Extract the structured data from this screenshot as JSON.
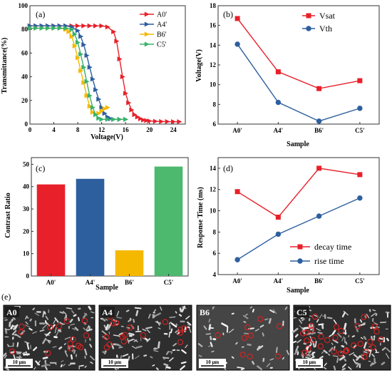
{
  "chart_data": [
    {
      "panel": "(a)",
      "type": "line",
      "xlabel": "Voltage(V)",
      "ylabel": "Transmittance(%)",
      "xlim": [
        0,
        26
      ],
      "ylim": [
        0,
        100
      ],
      "xticks": [
        0,
        4,
        8,
        12,
        16,
        20,
        24
      ],
      "yticks": [
        0,
        20,
        40,
        60,
        80,
        100
      ],
      "legend_position": "top-right",
      "series": [
        {
          "name": "A0'",
          "color": "#e8202a",
          "marker": "triangle-right",
          "x": [
            0,
            1,
            2,
            3,
            4,
            5,
            6,
            7,
            8,
            9,
            10,
            11,
            12,
            13,
            14,
            14.5,
            15,
            15.5,
            16,
            16.5,
            17,
            17.5,
            18,
            18.5,
            19,
            19.5,
            20,
            21,
            22,
            23,
            24,
            25
          ],
          "y": [
            83,
            83,
            83,
            83,
            83,
            83,
            83,
            83,
            83,
            83,
            83,
            83,
            83,
            82,
            78,
            70,
            55,
            40,
            26,
            18,
            12,
            8,
            6,
            4.5,
            3.5,
            3,
            2.6,
            2.3,
            2.2,
            2.1,
            2,
            2
          ]
        },
        {
          "name": "A4'",
          "color": "#2d5f9e",
          "marker": "triangle-right",
          "x": [
            0,
            1,
            2,
            3,
            4,
            5,
            6,
            7,
            8,
            8.5,
            9,
            9.5,
            10,
            10.5,
            11,
            11.5,
            12,
            12.5,
            13,
            13.5,
            14,
            15,
            16
          ],
          "y": [
            83,
            83,
            83,
            83,
            83,
            83,
            83,
            82,
            79,
            74,
            67,
            58,
            48,
            38,
            29,
            21,
            14,
            9,
            6,
            4.5,
            4,
            4,
            4
          ]
        },
        {
          "name": "B6'",
          "color": "#f5b800",
          "marker": "triangle-right",
          "x": [
            0,
            1,
            2,
            3,
            4,
            5,
            6,
            6.5,
            7,
            7.5,
            8,
            8.5,
            9,
            9.5,
            10,
            10.5,
            11,
            11.5,
            12,
            12.5,
            13
          ],
          "y": [
            81,
            81,
            81,
            81,
            81,
            81,
            80,
            78,
            74,
            66,
            56,
            45,
            35,
            24,
            15,
            10,
            8,
            9,
            11,
            13,
            14
          ]
        },
        {
          "name": "C5'",
          "color": "#38b26a",
          "marker": "triangle-right",
          "x": [
            0,
            1,
            2,
            3,
            4,
            5,
            6,
            7,
            7.5,
            8,
            8.5,
            9,
            9.5,
            10,
            10.5,
            11,
            11.5,
            12,
            13,
            14,
            15,
            16
          ],
          "y": [
            81,
            81,
            81,
            81,
            81,
            81,
            81,
            80,
            76,
            69,
            59,
            48,
            36,
            24,
            14,
            8,
            5,
            4,
            4,
            4,
            4,
            4
          ]
        }
      ]
    },
    {
      "panel": "(b)",
      "type": "line",
      "xlabel": "Sample",
      "ylabel": "Voltage(V)",
      "categories": [
        "A0'",
        "A4'",
        "B6'",
        "C5'"
      ],
      "ylim": [
        6,
        18
      ],
      "yticks": [
        6,
        8,
        10,
        12,
        14,
        16,
        18
      ],
      "legend_position": "top-right",
      "series": [
        {
          "name": "Vsat",
          "color": "#e8202a",
          "marker": "square",
          "values": [
            16.7,
            11.3,
            9.6,
            10.4
          ]
        },
        {
          "name": "Vth",
          "color": "#2d5f9e",
          "marker": "circle",
          "values": [
            14.1,
            8.2,
            6.3,
            7.6
          ]
        }
      ]
    },
    {
      "panel": "(c)",
      "type": "bar",
      "xlabel": "Sample",
      "ylabel": "Contrast Ratio",
      "categories": [
        "A0'",
        "A4'",
        "B6'",
        "C5'"
      ],
      "values": [
        41,
        43.5,
        11.5,
        49
      ],
      "colors": [
        "#e8202a",
        "#2d5f9e",
        "#f5b800",
        "#4cb96f"
      ],
      "ylim": [
        0,
        53
      ],
      "yticks": [
        0,
        10,
        20,
        30,
        40,
        50
      ]
    },
    {
      "panel": "(d)",
      "type": "line",
      "xlabel": "Sample",
      "ylabel": "Response Time (ms)",
      "categories": [
        "A0'",
        "A4'",
        "B6'",
        "C5'"
      ],
      "ylim": [
        4,
        15
      ],
      "yticks": [
        4,
        6,
        8,
        10,
        12,
        14
      ],
      "legend_position": "bottom-right",
      "series": [
        {
          "name": "decay time",
          "color": "#e8202a",
          "marker": "square",
          "values": [
            11.8,
            9.4,
            14.0,
            13.4
          ]
        },
        {
          "name": "rise time",
          "color": "#2d5f9e",
          "marker": "circle",
          "values": [
            5.4,
            7.8,
            9.5,
            11.2
          ]
        }
      ]
    }
  ],
  "micrographs": {
    "panel": "(e)",
    "images": [
      {
        "label": "A0",
        "scale": "10 μm"
      },
      {
        "label": "A4",
        "scale": "10 μm"
      },
      {
        "label": "B6",
        "scale": "10 μm"
      },
      {
        "label": "C5",
        "scale": "10 μm"
      }
    ]
  }
}
